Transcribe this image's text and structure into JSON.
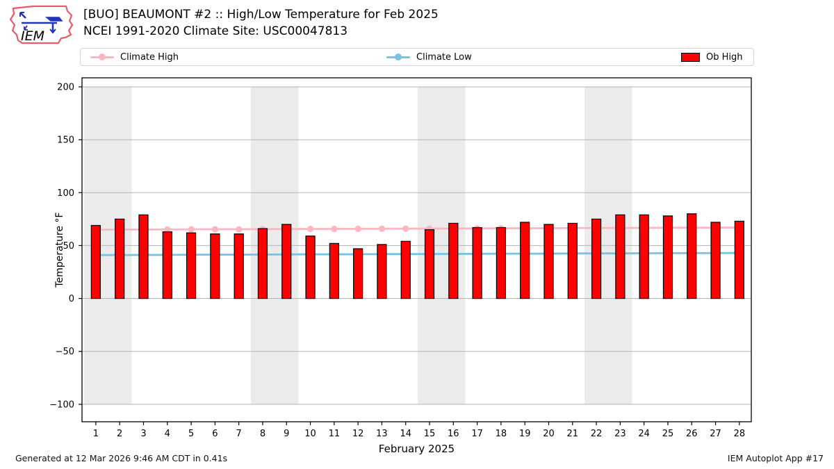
{
  "header": {
    "title_line1": "[BUO] BEAUMONT #2 :: High/Low Temperature for Feb 2025",
    "title_line2": "NCEI 1991-2020 Climate Site: USC00047813",
    "logo_text": "IEM"
  },
  "legend": {
    "items": [
      {
        "label": "Climate High",
        "type": "line",
        "color": "#ffb6c1"
      },
      {
        "label": "Climate Low",
        "type": "line",
        "color": "#74c4e6"
      },
      {
        "label": "Ob High",
        "type": "patch",
        "color": "#ff0000"
      }
    ]
  },
  "footer": {
    "left": "Generated at 12 Mar 2026 9:46 AM CDT in 0.41s",
    "right": "IEM Autoplot App #17"
  },
  "chart_data": {
    "type": "bar",
    "title": "[BUO] BEAUMONT #2 :: High/Low Temperature for Feb 2025",
    "subtitle": "NCEI 1991-2020 Climate Site: USC00047813",
    "xlabel": "February 2025",
    "ylabel": "Temperature °F",
    "x": [
      1,
      2,
      3,
      4,
      5,
      6,
      7,
      8,
      9,
      10,
      11,
      12,
      13,
      14,
      15,
      16,
      17,
      18,
      19,
      20,
      21,
      22,
      23,
      24,
      25,
      26,
      27,
      28
    ],
    "series": [
      {
        "name": "Climate High",
        "type": "line",
        "color": "#ffb6c1",
        "values": [
          65.0,
          65.1,
          65.1,
          65.2,
          65.3,
          65.4,
          65.4,
          65.5,
          65.6,
          65.7,
          65.7,
          65.8,
          65.9,
          66.0,
          66.0,
          66.1,
          66.2,
          66.3,
          66.3,
          66.4,
          66.5,
          66.6,
          66.6,
          66.7,
          66.8,
          66.9,
          66.9,
          67.0
        ]
      },
      {
        "name": "Climate Low",
        "type": "line",
        "color": "#74c4e6",
        "values": [
          41.0,
          41.1,
          41.1,
          41.2,
          41.3,
          41.4,
          41.4,
          41.5,
          41.6,
          41.7,
          41.7,
          41.8,
          41.9,
          42.0,
          42.0,
          42.1,
          42.2,
          42.3,
          42.3,
          42.4,
          42.5,
          42.6,
          42.6,
          42.7,
          42.8,
          42.9,
          42.9,
          43.0
        ]
      },
      {
        "name": "Ob High",
        "type": "bar",
        "color": "#ff0000",
        "values": [
          69,
          75,
          79,
          63,
          62,
          61,
          61,
          66,
          70,
          59,
          52,
          47,
          51,
          54,
          65,
          71,
          67,
          67,
          72,
          70,
          71,
          75,
          79,
          79,
          78,
          80,
          72,
          73
        ]
      }
    ],
    "yticks": [
      200,
      150,
      100,
      50,
      0,
      -50,
      -100
    ],
    "ylim": [
      -116.5,
      208.5
    ],
    "xlim": [
      0.42,
      28.5
    ],
    "grid": true,
    "grid_color": "#b3b3b3",
    "weekend_bands": [
      [
        0.5,
        2.5
      ],
      [
        7.5,
        9.5
      ],
      [
        14.5,
        16.5
      ],
      [
        21.5,
        23.5
      ]
    ],
    "band_span": [
      -100,
      200
    ],
    "band_color": "#ebebeb",
    "legend_position": "top"
  }
}
